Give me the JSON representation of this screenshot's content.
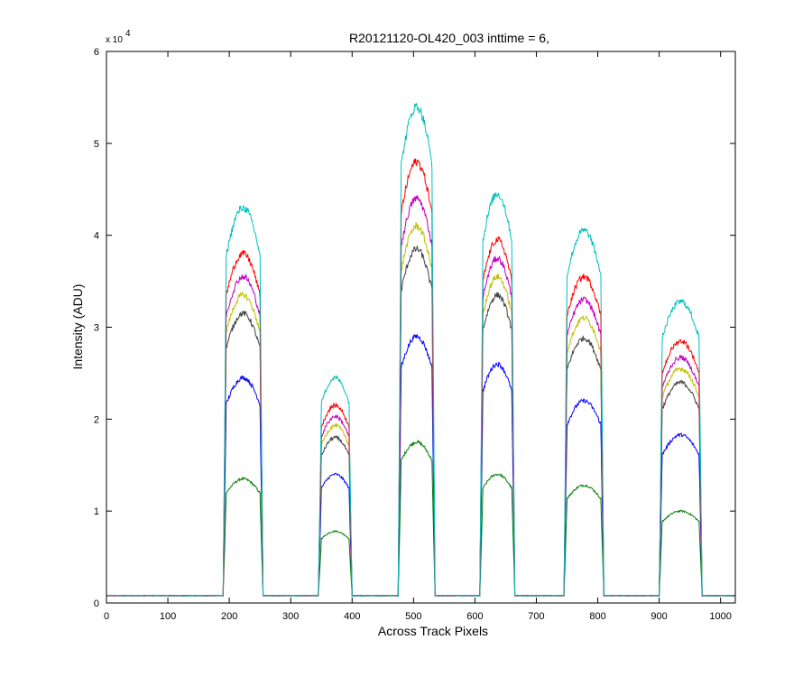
{
  "chart_data": {
    "type": "line",
    "title": "R20121120-OL420_003 inttime = 6,",
    "xlabel": "Across Track Pixels",
    "ylabel": "Intensity (ADU)",
    "xlim": [
      0,
      1024
    ],
    "ylim": [
      0,
      60000
    ],
    "xticks": [
      0,
      100,
      200,
      300,
      400,
      500,
      600,
      700,
      800,
      900,
      1000
    ],
    "yticks": [
      0,
      10000,
      20000,
      30000,
      40000,
      50000,
      60000
    ],
    "ytick_labels": [
      "0",
      "1",
      "2",
      "3",
      "4",
      "5",
      "6"
    ],
    "y_exponent_base": "x 10",
    "y_exponent_power": "4",
    "grid": false,
    "legend": "none",
    "baseline": 800,
    "bumps": [
      {
        "start": 190,
        "end": 255
      },
      {
        "start": 345,
        "end": 400
      },
      {
        "start": 475,
        "end": 535
      },
      {
        "start": 608,
        "end": 665
      },
      {
        "start": 745,
        "end": 810
      },
      {
        "start": 900,
        "end": 970
      }
    ],
    "series": [
      {
        "color": "#008000",
        "peaks": [
          13500,
          7800,
          17500,
          14000,
          12800,
          10000
        ]
      },
      {
        "color": "#0000ff",
        "peaks": [
          24500,
          14000,
          29000,
          26000,
          22000,
          18300
        ]
      },
      {
        "color": "#404040",
        "peaks": [
          31500,
          18000,
          38500,
          33500,
          28800,
          24000
        ]
      },
      {
        "color": "#bfbf00",
        "peaks": [
          33500,
          19300,
          41000,
          35500,
          31000,
          25500
        ]
      },
      {
        "color": "#bf00bf",
        "peaks": [
          35500,
          20300,
          44000,
          37500,
          33000,
          26700
        ]
      },
      {
        "color": "#ff0000",
        "peaks": [
          38000,
          21500,
          48000,
          39500,
          35500,
          28500
        ]
      },
      {
        "color": "#00bfbf",
        "peaks": [
          43000,
          24500,
          54000,
          44500,
          40500,
          32800
        ]
      }
    ]
  }
}
